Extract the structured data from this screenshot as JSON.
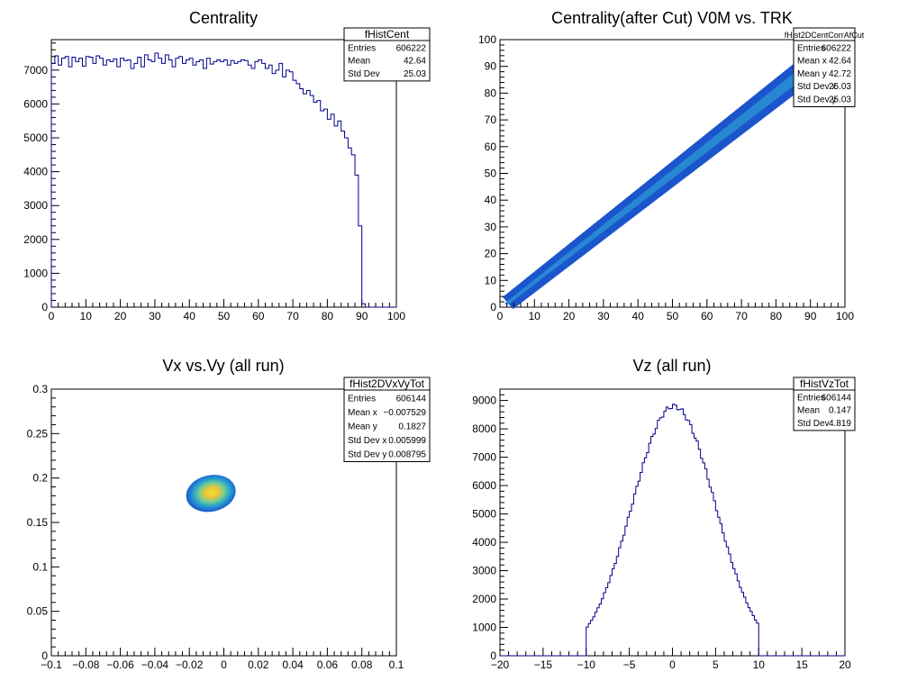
{
  "chart_data": [
    {
      "id": "cent",
      "type": "bar",
      "title": "Centrality",
      "xlim": [
        0,
        100
      ],
      "ylim": [
        0,
        7900
      ],
      "x_ticks": [
        0,
        10,
        20,
        30,
        40,
        50,
        60,
        70,
        80,
        90,
        100
      ],
      "y_ticks": [
        0,
        1000,
        2000,
        3000,
        4000,
        5000,
        6000,
        7000
      ],
      "bin_width": 1,
      "bin_start": 0,
      "color": "#00008b",
      "values": [
        7200,
        7420,
        7150,
        7350,
        7400,
        7100,
        7380,
        7250,
        7350,
        7120,
        7400,
        7380,
        7200,
        7420,
        7350,
        7150,
        7300,
        7250,
        7330,
        7100,
        7350,
        7280,
        7300,
        7050,
        7200,
        7380,
        7100,
        7450,
        7300,
        7250,
        7500,
        7350,
        7200,
        7450,
        7300,
        7100,
        7350,
        7400,
        7200,
        7300,
        7350,
        7150,
        7250,
        7300,
        7050,
        7350,
        7180,
        7250,
        7300,
        7250,
        7300,
        7150,
        7280,
        7200,
        7250,
        7300,
        7280,
        7150,
        7050,
        7250,
        7300,
        7200,
        7050,
        7150,
        6900,
        7000,
        7200,
        6800,
        7000,
        6950,
        6700,
        6600,
        6450,
        6300,
        6400,
        6250,
        6050,
        6100,
        5800,
        5850,
        5550,
        5700,
        5350,
        5500,
        5200,
        5000,
        4700,
        4500,
        3900,
        2400,
        100,
        0,
        0,
        0,
        0,
        0,
        0,
        0,
        0,
        0
      ],
      "stats": {
        "name": "fHistCent",
        "rows": [
          [
            "Entries",
            "606222"
          ],
          [
            "Mean",
            "42.64"
          ],
          [
            "Std Dev",
            "25.03"
          ]
        ]
      }
    },
    {
      "id": "corr",
      "type": "heatmap",
      "title": "Centrality(after Cut) V0M vs. TRK",
      "xlim": [
        0,
        100
      ],
      "ylim": [
        0,
        100
      ],
      "x_ticks": [
        0,
        10,
        20,
        30,
        40,
        50,
        60,
        70,
        80,
        90,
        100
      ],
      "y_ticks": [
        0,
        10,
        20,
        30,
        40,
        50,
        60,
        70,
        80,
        90,
        100
      ],
      "band": {
        "x_from": 0.8,
        "x_to": 90,
        "slope": 1.0,
        "width": 3
      },
      "stats": {
        "name": "fHist2DCentCorrAfCut",
        "rows": [
          [
            "Entries",
            "606222"
          ],
          [
            "Mean x",
            "42.64"
          ],
          [
            "Mean y",
            "42.72"
          ],
          [
            "Std Dev x",
            "25.03"
          ],
          [
            "Std Dev y",
            "25.03"
          ]
        ]
      }
    },
    {
      "id": "vxvy",
      "type": "heatmap",
      "title": "Vx vs.Vy (all run)",
      "xlim": [
        -0.1,
        0.1
      ],
      "ylim": [
        0,
        0.3
      ],
      "x_ticks": [
        -0.1,
        -0.08,
        -0.06,
        -0.04,
        -0.02,
        0,
        0.02,
        0.04,
        0.06,
        0.08,
        0.1
      ],
      "x_tick_labels": [
        "−0.1",
        "−0.08",
        "−0.06",
        "−0.04",
        "−0.02",
        "0",
        "0.02",
        "0.04",
        "0.06",
        "0.08",
        "0.1"
      ],
      "y_ticks": [
        0,
        0.05,
        0.1,
        0.15,
        0.2,
        0.25,
        0.3
      ],
      "blob": {
        "cx": -0.0075,
        "cy": 0.1827,
        "rx": 0.0145,
        "ry": 0.0205
      },
      "stats": {
        "name": "fHist2DVxVyTot",
        "rows": [
          [
            "Entries",
            "606144"
          ],
          [
            "Mean x",
            "−0.007529"
          ],
          [
            "Mean y",
            "0.1827"
          ],
          [
            "Std Dev x",
            "0.005999"
          ],
          [
            "Std Dev y",
            "0.008795"
          ]
        ]
      }
    },
    {
      "id": "vz",
      "type": "bar",
      "title": "Vz (all run)",
      "xlim": [
        -20,
        20
      ],
      "ylim": [
        0,
        9400
      ],
      "x_ticks": [
        -20,
        -15,
        -10,
        -5,
        0,
        5,
        10,
        15,
        20
      ],
      "x_tick_labels": [
        "−20",
        "−15",
        "−10",
        "−5",
        "0",
        "5",
        "10",
        "15",
        "20"
      ],
      "y_ticks": [
        0,
        1000,
        2000,
        3000,
        4000,
        5000,
        6000,
        7000,
        8000,
        9000
      ],
      "color": "#00008b",
      "gauss": {
        "mean": 0.147,
        "sigma": 4.819,
        "amp": 8800,
        "from": -10,
        "to": 10,
        "bin": 0.25
      },
      "stats": {
        "name": "fHistVzTot",
        "rows": [
          [
            "Entries",
            "606144"
          ],
          [
            "Mean",
            "0.147"
          ],
          [
            "Std Dev",
            "4.819"
          ]
        ]
      }
    }
  ]
}
